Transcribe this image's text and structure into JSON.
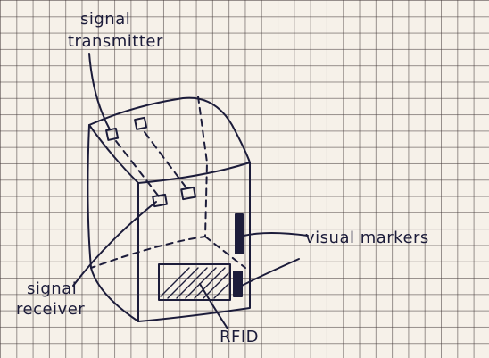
{
  "labels": {
    "signal_transmitter_line1": "signal",
    "signal_transmitter_line2": "transmitter",
    "signal_receiver_line1": "signal",
    "signal_receiver_line2": "receiver",
    "visual_markers": "visual markers",
    "rfid": "RFID"
  },
  "colors": {
    "ink": "#1c1c3a",
    "paper": "#f6f1e9",
    "grid": "#463c3c"
  }
}
